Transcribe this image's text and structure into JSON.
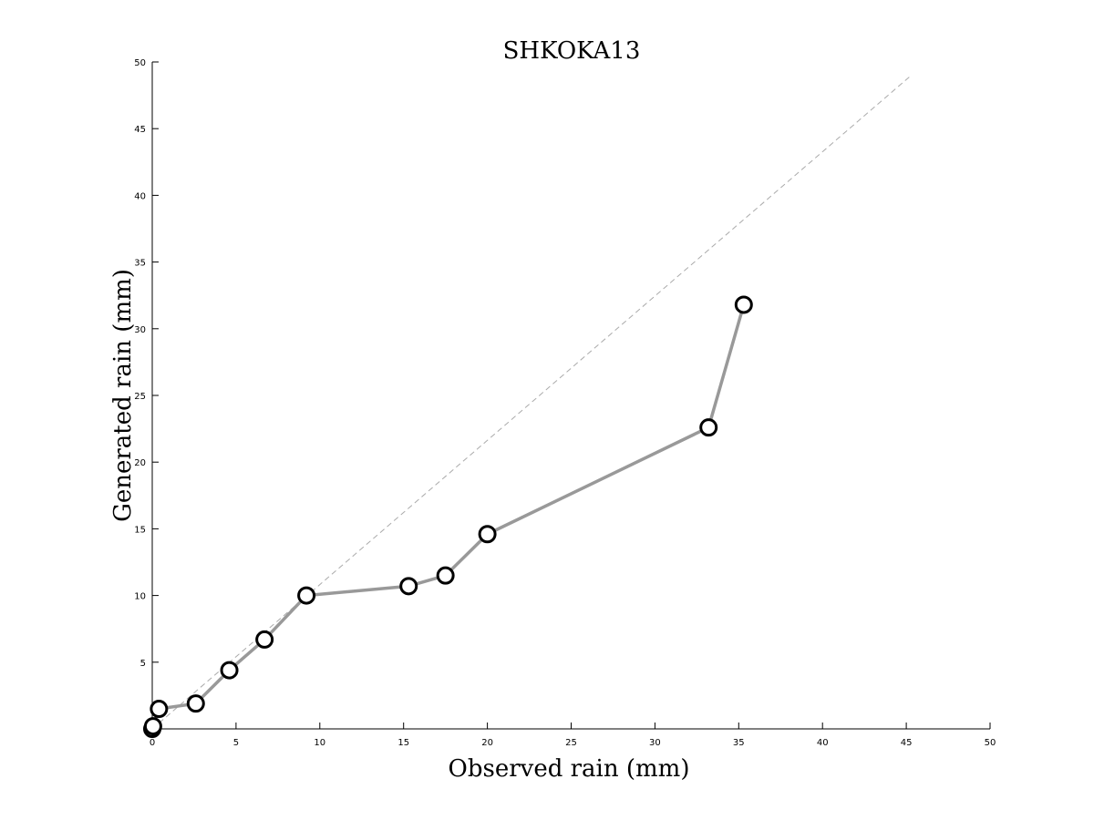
{
  "chart_data": {
    "type": "line",
    "title": "SHKOKA13",
    "xlabel": "Observed rain (mm)",
    "ylabel": "Generated rain (mm)",
    "xlim": [
      0,
      50
    ],
    "ylim": [
      0,
      50
    ],
    "xticks": [
      0,
      5,
      10,
      15,
      20,
      25,
      30,
      35,
      40,
      45,
      50
    ],
    "yticks": [
      5,
      10,
      15,
      20,
      25,
      30,
      35,
      40,
      45,
      50
    ],
    "grid": false,
    "reference_line": {
      "style": "dashed",
      "color": "#aaaaaa",
      "x": [
        0,
        45.3
      ],
      "y": [
        0,
        49
      ]
    },
    "series": [
      {
        "color": "#999999",
        "marker": "open-circle",
        "x": [
          0.0,
          0.05,
          0.4,
          2.6,
          4.6,
          6.7,
          9.2,
          15.3,
          17.5,
          20.0,
          33.2,
          35.3
        ],
        "y": [
          0.0,
          0.2,
          1.5,
          1.9,
          4.4,
          6.7,
          10.0,
          10.7,
          11.5,
          14.6,
          22.6,
          31.8
        ]
      }
    ]
  }
}
